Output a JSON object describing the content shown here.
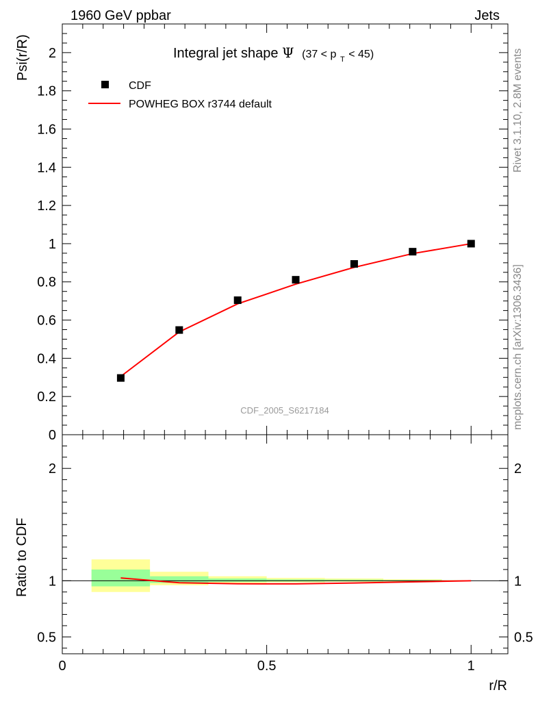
{
  "header": {
    "left": "1960 GeV ppbar",
    "right": "Jets"
  },
  "side_text": {
    "rivet": "Rivet 3.1.10,  2.8M events",
    "mcplots": "mcplots.cern.ch [arXiv:1306.3436]"
  },
  "watermark": "CDF_2005_S6217184",
  "chart_data": [
    {
      "panel": "main",
      "type": "line",
      "title": "Integral jet shape",
      "title_symbol": "Ψ",
      "title_range": {
        "pre": "(37 < p",
        "sub": "T",
        "post": " < 45)"
      },
      "ylabel": "Psi(r/R)",
      "xlim": [
        0,
        1.09
      ],
      "ylim": [
        0,
        2.15
      ],
      "yticks": [
        0,
        0.2,
        0.4,
        0.6,
        0.8,
        1,
        1.2,
        1.4,
        1.6,
        1.8,
        2
      ],
      "ytick_labels": [
        "0",
        "0.2",
        "0.4",
        "0.6",
        "0.8",
        "1",
        "1.2",
        "1.4",
        "1.6",
        "1.8",
        "2"
      ],
      "legend": [
        {
          "label": "CDF",
          "marker": "square",
          "color": "#000000"
        },
        {
          "label": "POWHEG BOX r3744 default",
          "marker": "line",
          "color": "#ff0000"
        }
      ],
      "series": [
        {
          "name": "CDF",
          "x": [
            0.143,
            0.286,
            0.429,
            0.571,
            0.714,
            0.857,
            1.0
          ],
          "y": [
            0.297,
            0.548,
            0.704,
            0.811,
            0.894,
            0.958,
            1.0
          ]
        },
        {
          "name": "POWHEG BOX r3744 default",
          "x": [
            0.143,
            0.286,
            0.429,
            0.571,
            0.714,
            0.857,
            1.0
          ],
          "y": [
            0.305,
            0.538,
            0.685,
            0.788,
            0.876,
            0.948,
            1.0
          ]
        }
      ]
    },
    {
      "panel": "ratio",
      "type": "line",
      "ylabel": "Ratio to CDF",
      "xlabel": "r/R",
      "xlim": [
        0,
        1.09
      ],
      "ylim": [
        0.35,
        2.3
      ],
      "xticks": [
        0,
        0.5,
        1
      ],
      "xtick_labels": [
        "0",
        "0.5",
        "1"
      ],
      "yticks": [
        0.5,
        1,
        2
      ],
      "ytick_labels": [
        "0.5",
        "1",
        "2"
      ],
      "bands": {
        "x_edges": [
          0.0715,
          0.2145,
          0.3575,
          0.5,
          0.6425,
          0.7855,
          0.9285,
          1.0
        ],
        "yellow": [
          [
            0.9,
            1.19
          ],
          [
            0.96,
            1.08
          ],
          [
            0.98,
            1.04
          ],
          [
            0.985,
            1.025
          ],
          [
            0.99,
            1.02
          ],
          [
            0.993,
            1.013
          ],
          [
            0.997,
            1.005
          ]
        ],
        "green": [
          [
            0.95,
            1.1
          ],
          [
            0.98,
            1.04
          ],
          [
            0.99,
            1.02
          ],
          [
            0.993,
            1.012
          ],
          [
            0.995,
            1.01
          ],
          [
            0.997,
            1.006
          ],
          [
            0.999,
            1.002
          ]
        ]
      },
      "series": [
        {
          "name": "POWHEG BOX r3744 default",
          "x": [
            0.143,
            0.286,
            0.429,
            0.571,
            0.714,
            0.857,
            1.0
          ],
          "y": [
            1.025,
            0.982,
            0.973,
            0.972,
            0.98,
            0.99,
            1.0
          ]
        }
      ]
    }
  ],
  "colors": {
    "mc": "#ff0000",
    "data": "#000000",
    "band_yellow": "#ffff99",
    "band_green": "#99ff99"
  }
}
